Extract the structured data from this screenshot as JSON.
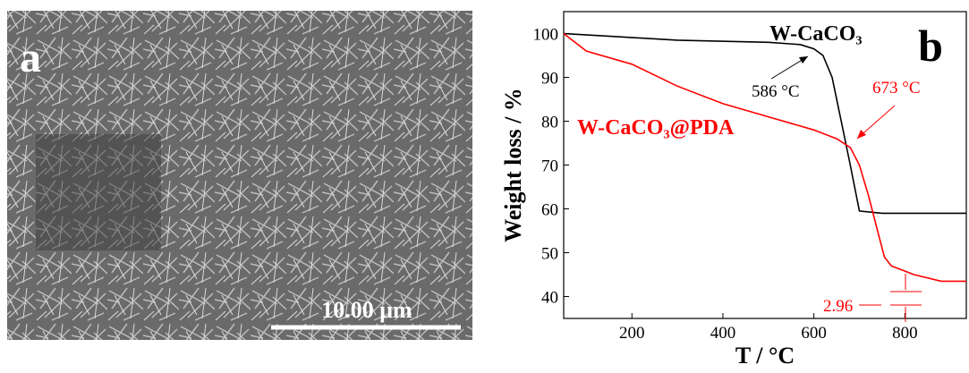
{
  "panel_a": {
    "label": "a",
    "scale_bar": "10.00 μm"
  },
  "chart_data": {
    "type": "line",
    "panel_label": "b",
    "xlabel": "T / °C",
    "ylabel": "Weight loss / %",
    "xlim": [
      50,
      935
    ],
    "ylim": [
      35,
      105
    ],
    "xticks": [
      200,
      400,
      600,
      800
    ],
    "yticks": [
      40,
      50,
      60,
      70,
      80,
      90,
      100
    ],
    "series": [
      {
        "name": "W-CaCO₃",
        "color": "#000000",
        "x": [
          50,
          300,
          500,
          570,
          600,
          620,
          640,
          660,
          680,
          700,
          750,
          935
        ],
        "values": [
          100,
          98.5,
          98,
          97.5,
          96.5,
          95,
          90,
          80,
          70,
          59.5,
          59,
          59
        ]
      },
      {
        "name": "W-CaCO₃@PDA",
        "color": "#ff0000",
        "x": [
          50,
          100,
          200,
          300,
          400,
          500,
          600,
          650,
          680,
          700,
          720,
          740,
          755,
          770,
          820,
          880,
          935
        ],
        "values": [
          100,
          96,
          93,
          88,
          84,
          81,
          78,
          76,
          74,
          70,
          63,
          55,
          49,
          47,
          45,
          43.5,
          43.5
        ]
      }
    ],
    "annotations": [
      "586 °C",
      "673 °C",
      "2.96"
    ]
  }
}
